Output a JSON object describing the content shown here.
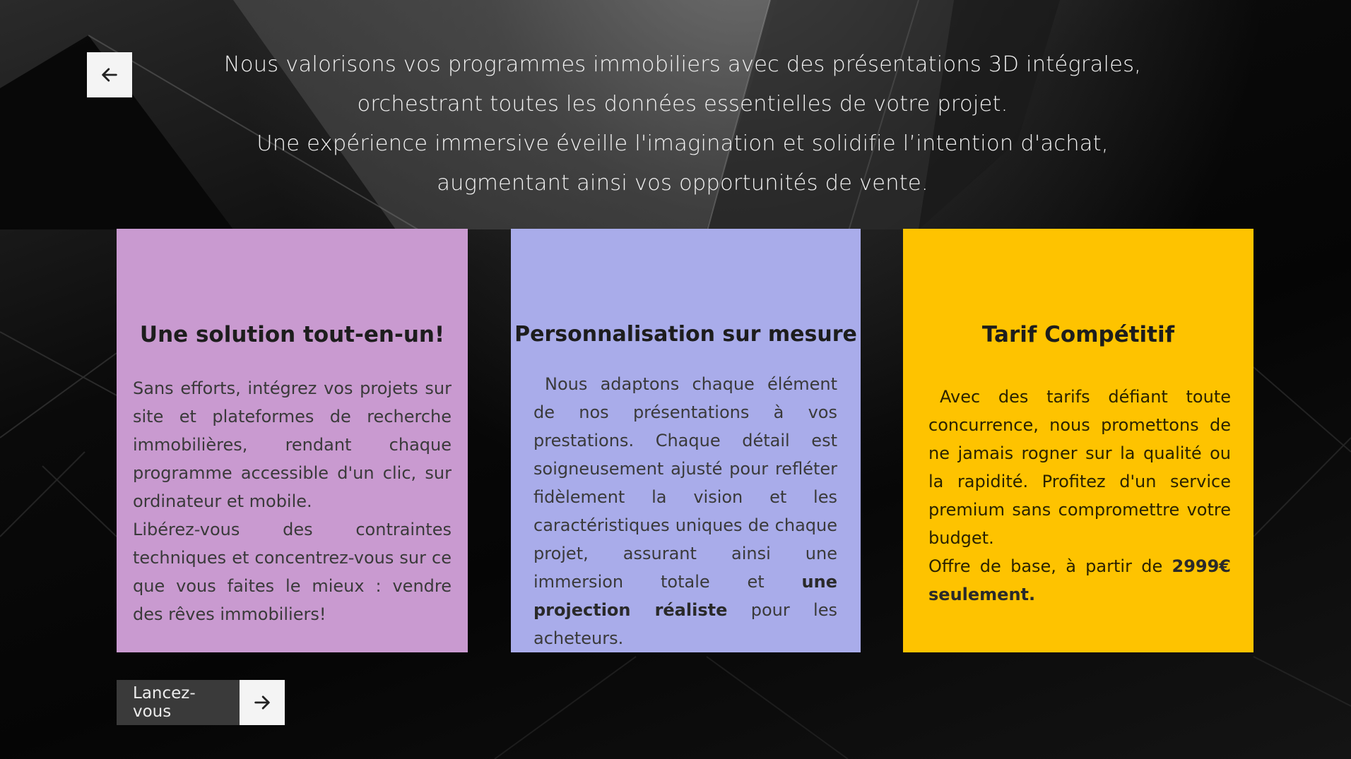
{
  "navigation": {
    "back_icon": "arrow-left-icon"
  },
  "intro": {
    "lines": [
      "Nous valorisons vos programmes immobiliers avec des présentations 3D intégrales,",
      "orchestrant toutes les données essentielles de votre projet.",
      "Une expérience immersive éveille l'imagination et solidifie l’intention d'achat,",
      "augmentant ainsi vos opportunités de vente."
    ]
  },
  "cards": [
    {
      "title": "Une solution tout-en-un!",
      "color": "#c99ad0",
      "paragraph_1": "Sans efforts, intégrez vos projets sur site et plateformes de recherche immobilières, rendant chaque programme accessible d'un clic, sur ordinateur et mobile.",
      "paragraph_2": "Libérez-vous des contraintes techniques et concentrez-vous sur ce que vous faites le mieux : vendre des rêves immobiliers!"
    },
    {
      "title": "Personnalisation sur mesure",
      "color": "#a9acea",
      "text_before": "Nous adaptons chaque élément de nos présentations à vos prestations. Chaque détail est soigneusement ajusté pour refléter fidèlement la vision et les caractéristiques uniques de chaque projet, assurant ainsi une immersion totale et",
      "text_bold": "une projection réaliste",
      "text_after": "pour les acheteurs."
    },
    {
      "title": "Tarif Compétitif",
      "color": "#fec300",
      "paragraph_1": "Avec des tarifs défiant toute concurrence, nous promettons de ne jamais rogner sur la qualité ou la rapidité. Profitez d'un service premium sans compromettre votre budget.",
      "offer_text": "Offre de base, à partir de",
      "offer_bold": "2999€ seulement."
    }
  ],
  "cta": {
    "label": "Lancez-vous",
    "icon": "arrow-right-icon"
  }
}
